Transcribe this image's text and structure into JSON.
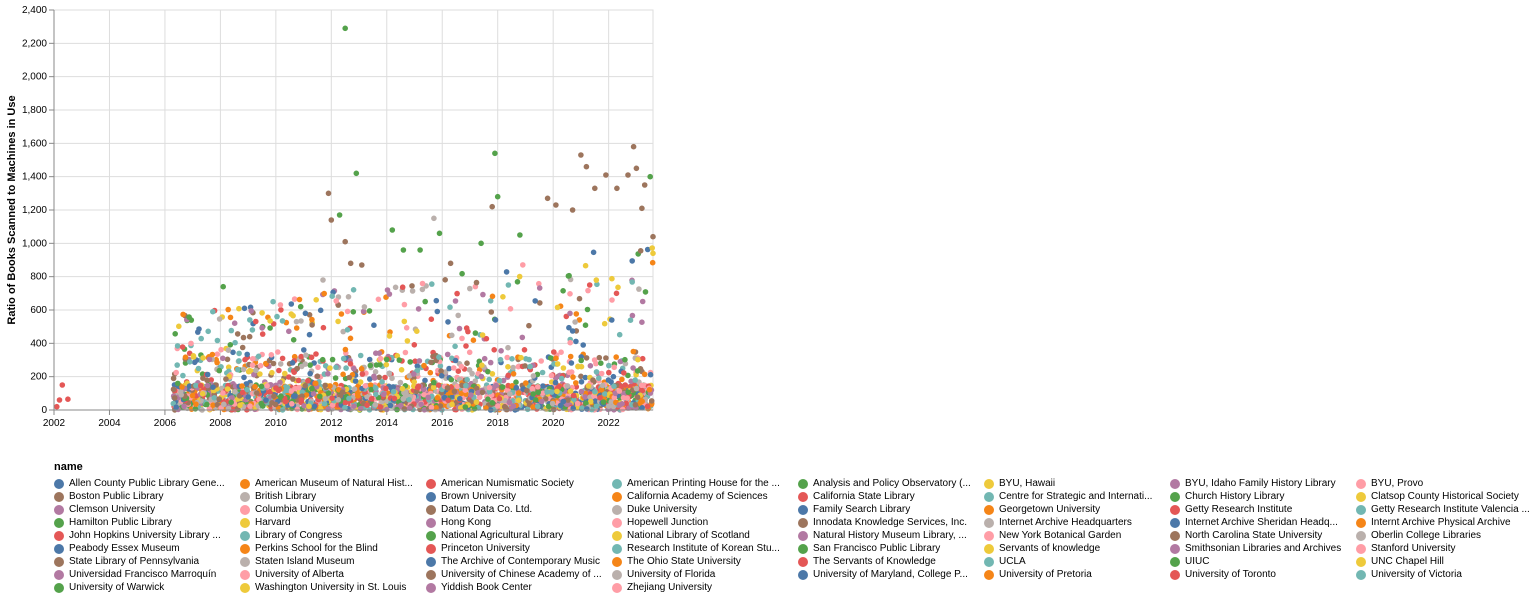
{
  "chart_data": {
    "type": "scatter",
    "xlabel": "months",
    "ylabel": "Ratio of Books Scanned to Machines in Use",
    "xlim": [
      2002,
      2023.6
    ],
    "ylim": [
      0,
      2400
    ],
    "x_ticks": [
      "2002",
      "2004",
      "2006",
      "2008",
      "2010",
      "2012",
      "2014",
      "2016",
      "2018",
      "2020",
      "2022"
    ],
    "y_ticks": [
      "0",
      "200",
      "400",
      "600",
      "800",
      "1,000",
      "1,200",
      "1,400",
      "1,600",
      "1,800",
      "2,000",
      "2,200",
      "2,400"
    ],
    "legend": {
      "title": "name",
      "placement": "bottom"
    },
    "grid": true,
    "series_names": [
      "Allen County Public Library Gene...",
      "American Museum of Natural Hist...",
      "American Numismatic Society",
      "American Printing House for the ...",
      "Analysis and Policy Observatory (...",
      "BYU, Hawaii",
      "BYU, Idaho Family History Library",
      "BYU, Provo",
      "Boston Public Library",
      "British Library",
      "Brown University",
      "California Academy of Sciences",
      "California State Library",
      "Centre for Strategic and Internati...",
      "Church History Library",
      "Clatsop County Historical Society",
      "Clemson University",
      "Columbia University",
      "Datum Data Co. Ltd.",
      "Duke University",
      "Family Search Library",
      "Georgetown University",
      "Getty Research Institute",
      "Getty Research Institute Valencia ...",
      "Hamilton Public Library",
      "Harvard",
      "Hong Kong",
      "Hopewell Junction",
      "Innodata Knowledge Services, Inc.",
      "Internet Archive Headquarters",
      "Internet Archive Sheridan Headq...",
      "Internt Archive Physical Archive",
      "John Hopkins University Library ...",
      "Library of Congress",
      "National Agricultural Library",
      "National Library of Scotland",
      "Natural History Museum Library, ...",
      "New York Botanical Garden",
      "North Carolina State University",
      "Oberlin College Libraries",
      "Peabody Essex Museum",
      "Perkins School for the Blind",
      "Princeton University",
      "Research Institute of Korean Stu...",
      "San Francisco Public Library",
      "Servants of knowledge",
      "Smithsonian Libraries and Archives",
      "Stanford University",
      "State Library of Pennsylvania",
      "Staten Island Museum",
      "The Archive of Contemporary Music",
      "The Ohio State University",
      "The Servants of Knowledge",
      "UCLA",
      "UIUC",
      "UNC Chapel Hill",
      "Universidad Francisco Marroquín",
      "University of Alberta",
      "University of Chinese Academy of ...",
      "University of Florida",
      "University of Maryland, College P...",
      "University of Pretoria",
      "University of Toronto",
      "University of Victoria",
      "University of Warwick",
      "Washington University in St. Louis",
      "Yiddish Book Center",
      "Zhejiang University"
    ],
    "palette": [
      "#4c78a8",
      "#f58518",
      "#e45756",
      "#72b7b2",
      "#54a24b",
      "#eeca3b",
      "#b279a2",
      "#ff9da6",
      "#9d755d",
      "#bab0ac"
    ],
    "dense_band": {
      "x_range": [
        2006.3,
        2023.6
      ],
      "y_range": [
        0,
        320
      ]
    },
    "notable_points": [
      {
        "x": 2002.1,
        "y": 20
      },
      {
        "x": 2002.2,
        "y": 60
      },
      {
        "x": 2002.3,
        "y": 150
      },
      {
        "x": 2002.5,
        "y": 65
      },
      {
        "x": 2008.1,
        "y": 740
      },
      {
        "x": 2009.9,
        "y": 650
      },
      {
        "x": 2011.7,
        "y": 780
      },
      {
        "x": 2011.9,
        "y": 1300
      },
      {
        "x": 2012.0,
        "y": 1140
      },
      {
        "x": 2012.3,
        "y": 1170
      },
      {
        "x": 2012.5,
        "y": 2290
      },
      {
        "x": 2012.9,
        "y": 1420
      },
      {
        "x": 2012.5,
        "y": 1010
      },
      {
        "x": 2012.7,
        "y": 880
      },
      {
        "x": 2013.1,
        "y": 870
      },
      {
        "x": 2014.2,
        "y": 1080
      },
      {
        "x": 2014.6,
        "y": 960
      },
      {
        "x": 2015.2,
        "y": 960
      },
      {
        "x": 2015.7,
        "y": 1150
      },
      {
        "x": 2015.9,
        "y": 1060
      },
      {
        "x": 2016.3,
        "y": 880
      },
      {
        "x": 2017.4,
        "y": 1000
      },
      {
        "x": 2017.9,
        "y": 1540
      },
      {
        "x": 2018.0,
        "y": 1280
      },
      {
        "x": 2017.8,
        "y": 1220
      },
      {
        "x": 2018.8,
        "y": 1050
      },
      {
        "x": 2019.8,
        "y": 1270
      },
      {
        "x": 2020.1,
        "y": 1230
      },
      {
        "x": 2020.7,
        "y": 1200
      },
      {
        "x": 2021.0,
        "y": 1530
      },
      {
        "x": 2021.2,
        "y": 1460
      },
      {
        "x": 2021.5,
        "y": 1330
      },
      {
        "x": 2021.9,
        "y": 1410
      },
      {
        "x": 2022.3,
        "y": 1330
      },
      {
        "x": 2022.7,
        "y": 1410
      },
      {
        "x": 2022.9,
        "y": 1580
      },
      {
        "x": 2023.0,
        "y": 1450
      },
      {
        "x": 2023.3,
        "y": 1350
      },
      {
        "x": 2023.5,
        "y": 1400
      },
      {
        "x": 2023.2,
        "y": 1210
      },
      {
        "x": 2023.6,
        "y": 1040
      },
      {
        "x": 2023.6,
        "y": 940
      }
    ]
  }
}
